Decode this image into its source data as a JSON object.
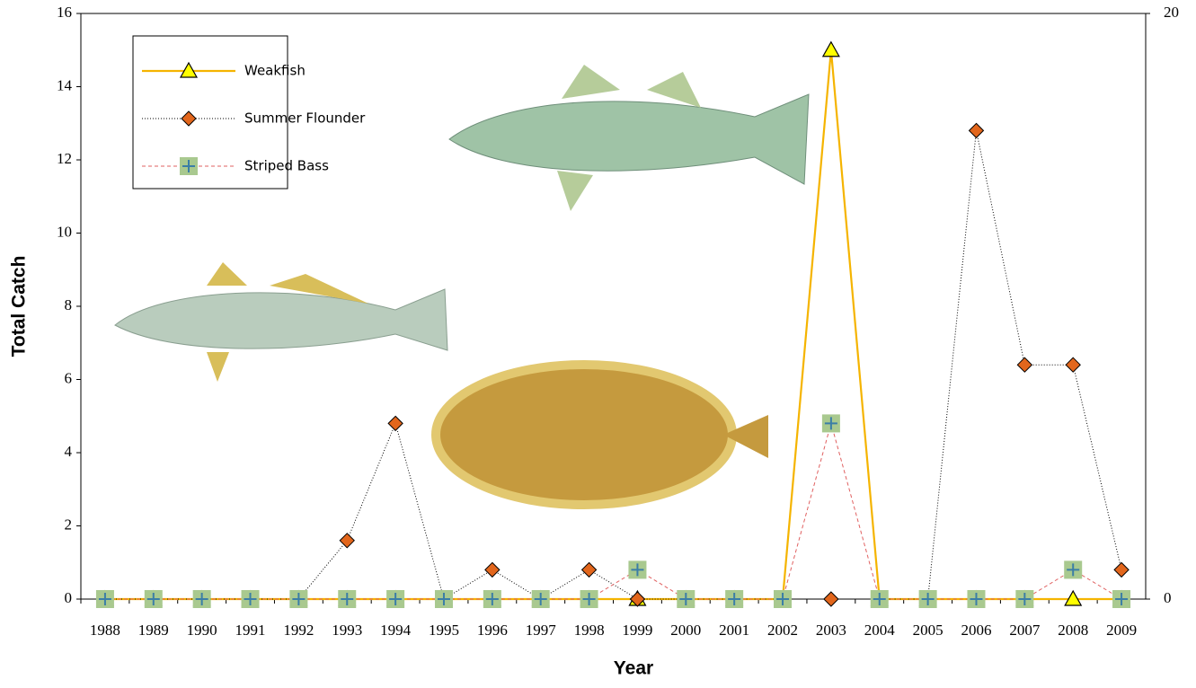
{
  "chart_data": {
    "type": "line",
    "y_label": "Total Catch",
    "x_label": "Year",
    "categories": [
      "1988",
      "1989",
      "1990",
      "1991",
      "1992",
      "1993",
      "1994",
      "1995",
      "1996",
      "1997",
      "1998",
      "1999",
      "2000",
      "2001",
      "2002",
      "2003",
      "2004",
      "2005",
      "2006",
      "2007",
      "2008",
      "2009"
    ],
    "series": [
      {
        "name": "Weakfish",
        "color": "#f5b400",
        "marker": "triangle",
        "marker_color": "#ffff00",
        "dash": "none",
        "values": [
          0,
          0,
          0,
          0,
          0,
          0,
          0,
          0,
          0,
          0,
          0,
          0,
          0,
          0,
          0,
          15,
          0,
          0,
          0,
          0,
          0,
          0
        ]
      },
      {
        "name": "Summer Flounder",
        "color": "#000000",
        "marker": "diamond",
        "marker_color": "#e2661c",
        "dash": "1 2",
        "values": [
          0,
          0,
          0,
          0,
          0,
          1.6,
          4.8,
          0,
          0.8,
          0,
          0.8,
          0,
          0,
          0,
          0,
          0,
          0,
          0,
          12.8,
          6.4,
          6.4,
          0.8
        ]
      },
      {
        "name": "Striped Bass",
        "color": "#e06060",
        "marker": "plus-square",
        "marker_color": "#a9c98f",
        "dash": "4 3",
        "values": [
          0,
          0,
          0,
          0,
          0,
          0,
          0,
          0,
          0,
          0,
          0,
          0.8,
          0,
          0,
          0,
          4.8,
          0,
          0,
          0,
          0,
          0.8,
          0
        ]
      }
    ],
    "ylim": [
      0,
      16
    ],
    "yticks": [
      0,
      2,
      4,
      6,
      8,
      10,
      12,
      14,
      16
    ],
    "y2lim": [
      0,
      20
    ],
    "y2ticks": [
      0,
      20
    ],
    "grid": false,
    "legend": "upper left"
  }
}
